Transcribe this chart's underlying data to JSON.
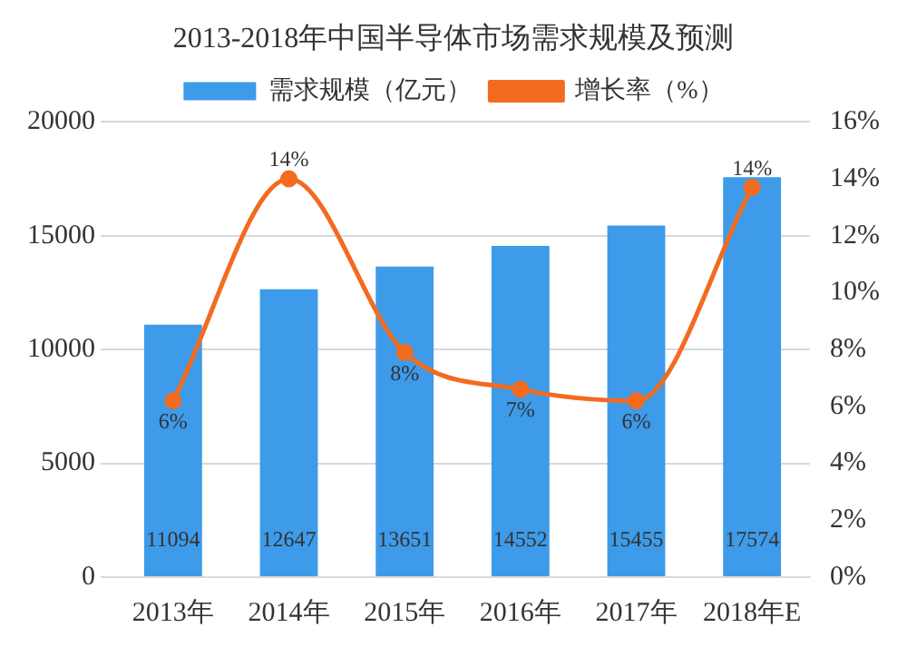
{
  "chart_data": {
    "type": "bar",
    "title": "2013-2018年中国半导体市场需求规模及预测",
    "categories": [
      "2013年",
      "2014年",
      "2015年",
      "2016年",
      "2017年",
      "2018年E"
    ],
    "series": [
      {
        "name": "需求规模（亿元）",
        "color": "#3d9be9",
        "values": [
          11094,
          12647,
          13651,
          14552,
          15455,
          17574
        ],
        "value_labels": [
          "11094",
          "12647",
          "13651",
          "14552",
          "15455",
          "17574"
        ]
      },
      {
        "name": "增长率（%）",
        "type": "line",
        "axis": "y2",
        "color": "#f26b21",
        "values": [
          6.2,
          14,
          7.9,
          6.6,
          6.2,
          13.7
        ],
        "value_labels": [
          "6%",
          "14%",
          "8%",
          "7%",
          "6%",
          "14%"
        ]
      }
    ],
    "ylim": [
      0,
      20000
    ],
    "yticks": [
      0,
      5000,
      10000,
      15000,
      20000
    ],
    "y2lim": [
      0,
      16
    ],
    "y2ticks": [
      {
        "value": 0,
        "label": "0%"
      },
      {
        "value": 2,
        "label": "2%"
      },
      {
        "value": 4,
        "label": "4%"
      },
      {
        "value": 6,
        "label": "6%"
      },
      {
        "value": 8,
        "label": "8%"
      },
      {
        "value": 10,
        "label": "10%"
      },
      {
        "value": 12,
        "label": "12%"
      },
      {
        "value": 14,
        "label": "14%"
      },
      {
        "value": 16,
        "label": "16%"
      }
    ],
    "grid": "y",
    "legend": "top",
    "marker": "circle"
  }
}
